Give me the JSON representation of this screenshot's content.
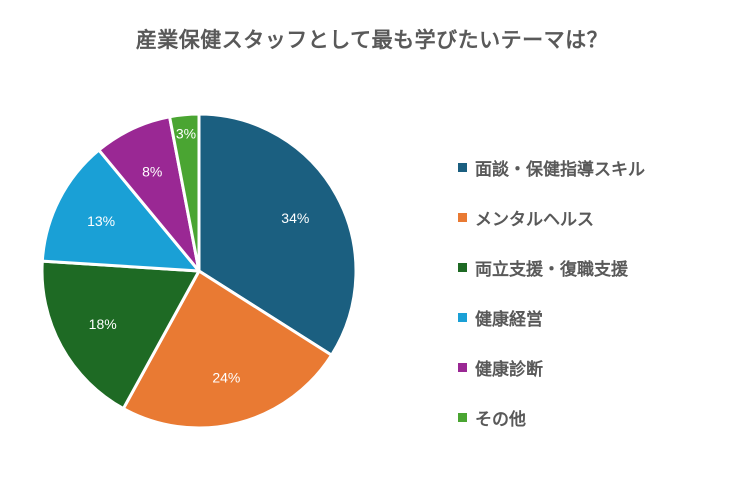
{
  "chart_data": {
    "type": "pie",
    "title": "産業保健スタッフとして最も学びたいテーマは？",
    "legend_position": "right",
    "start_angle": "top",
    "direction": "clockwise",
    "slices": [
      {
        "label": "面談・保健指導スキル",
        "value": 34,
        "value_label": "34%",
        "color": "#1b5f80"
      },
      {
        "label": "メンタルヘルス",
        "value": 24,
        "value_label": "24%",
        "color": "#e97a33"
      },
      {
        "label": "両立支援・復職支援",
        "value": 18,
        "value_label": "18%",
        "color": "#1e6a24"
      },
      {
        "label": "健康経営",
        "value": 13,
        "value_label": "13%",
        "color": "#1aa0d6"
      },
      {
        "label": "健康診断",
        "value": 8,
        "value_label": "8%",
        "color": "#9a2894"
      },
      {
        "label": "その他",
        "value": 3,
        "value_label": "3%",
        "color": "#4aa532"
      }
    ]
  }
}
